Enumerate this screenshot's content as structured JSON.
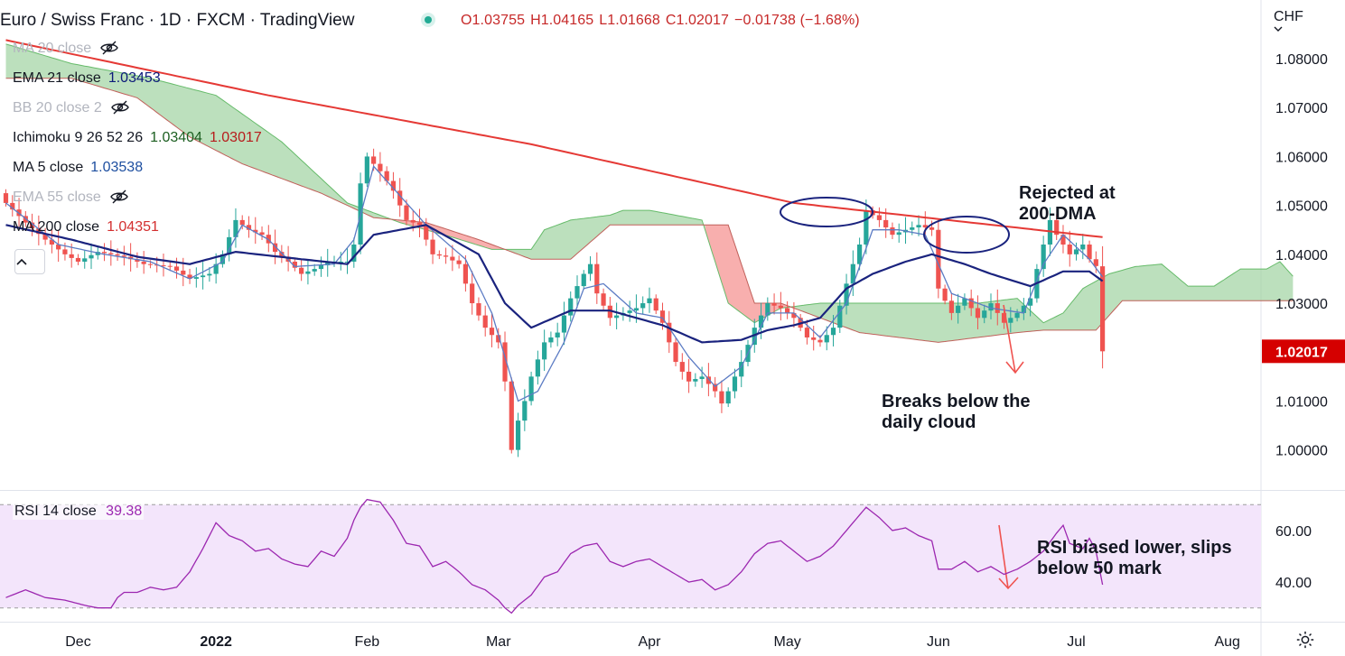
{
  "header": {
    "title": "Euro / Swiss Franc · 1D · FXCM · TradingView",
    "ohlc": {
      "o": "O1.03755",
      "h": "H1.04165",
      "l": "L1.01668",
      "c": "C1.02017",
      "chg": "−0.01738 (−1.68%)"
    }
  },
  "legend": [
    {
      "label": "MA 20 close",
      "value": "",
      "hidden": true,
      "color": "#b2b5be",
      "value_color": "#b2b5be"
    },
    {
      "label": "EMA 21 close",
      "value": "1.03453",
      "hidden": false,
      "color": "#131722",
      "value_color": "#0d1b7a"
    },
    {
      "label": "BB 20 close 2",
      "value": "",
      "hidden": true,
      "color": "#b2b5be",
      "value_color": "#b2b5be"
    },
    {
      "label": "Ichimoku 9 26 52 26",
      "value": "1.03404",
      "value2": "1.03017",
      "hidden": false,
      "color": "#131722",
      "value_color": "#1b5e20",
      "value2_color": "#b71c1c"
    },
    {
      "label": "MA 5 close",
      "value": "1.03538",
      "hidden": false,
      "color": "#131722",
      "value_color": "#1e4fa0"
    },
    {
      "label": "EMA 55 close",
      "value": "",
      "hidden": true,
      "color": "#b2b5be",
      "value_color": "#b2b5be"
    },
    {
      "label": "MA 200 close",
      "value": "1.04351",
      "hidden": false,
      "color": "#131722",
      "value_color": "#d32f2f"
    }
  ],
  "axis": {
    "currency": "CHF",
    "price_ticks": [
      "1.08000",
      "1.07000",
      "1.06000",
      "1.05000",
      "1.04000",
      "1.03000",
      "1.02000",
      "1.01000",
      "1.00000"
    ],
    "price_tick_values": [
      1.08,
      1.07,
      1.06,
      1.05,
      1.04,
      1.03,
      1.02,
      1.01,
      1.0
    ],
    "rsi_ticks": [
      "60.00",
      "40.00"
    ],
    "rsi_tick_values": [
      60,
      40
    ],
    "time_ticks": [
      "Dec",
      "2022",
      "Feb",
      "Mar",
      "Apr",
      "May",
      "Jun",
      "Jul",
      "Aug"
    ],
    "current_price_label": "1.02017"
  },
  "annotations": {
    "rejected": "Rejected at\n200-DMA",
    "breaks": "Breaks below the\ndaily cloud",
    "rsi": "RSI biased lower, slips\nbelow 50 mark"
  },
  "rsi": {
    "label": "RSI 14 close",
    "value": "39.38",
    "upper_band": 70,
    "lower_band": 30
  },
  "colors": {
    "up": "#26a69a",
    "down": "#ef5350",
    "ma200": "#e53935",
    "ema21": "#1a237e",
    "ma5": "#5c7cc4",
    "cloud_bear": "#f7a1a0",
    "cloud_bull": "#a5d6a7",
    "rsi": "#9c27b0",
    "rsi_band": "#f3e5fb",
    "price_label_bg": "#d50000"
  },
  "chart_data": {
    "type": "candlestick",
    "ylim": [
      0.992,
      1.092
    ],
    "rsi_ylim": [
      25,
      75
    ],
    "x_ticks": [
      {
        "label": "Dec",
        "index": 11
      },
      {
        "label": "2022",
        "index": 32
      },
      {
        "label": "Feb",
        "index": 55
      },
      {
        "label": "Mar",
        "index": 75
      },
      {
        "label": "Apr",
        "index": 98
      },
      {
        "label": "May",
        "index": 119
      },
      {
        "label": "Jun",
        "index": 142
      },
      {
        "label": "Jul",
        "index": 163
      },
      {
        "label": "Aug",
        "index": 186
      }
    ],
    "close_anchors": [
      [
        0,
        1.0505
      ],
      [
        3,
        1.0465
      ],
      [
        6,
        1.043
      ],
      [
        9,
        1.04
      ],
      [
        11,
        1.0385
      ],
      [
        14,
        1.0405
      ],
      [
        18,
        1.0395
      ],
      [
        21,
        1.038
      ],
      [
        25,
        1.0375
      ],
      [
        28,
        1.035
      ],
      [
        31,
        1.036
      ],
      [
        33,
        1.04
      ],
      [
        35,
        1.047
      ],
      [
        37,
        1.045
      ],
      [
        39,
        1.044
      ],
      [
        41,
        1.0405
      ],
      [
        43,
        1.0385
      ],
      [
        45,
        1.036
      ],
      [
        47,
        1.037
      ],
      [
        49,
        1.0385
      ],
      [
        52,
        1.0385
      ],
      [
        53,
        1.042
      ],
      [
        54,
        1.0545
      ],
      [
        55,
        1.06
      ],
      [
        57,
        1.057
      ],
      [
        59,
        1.053
      ],
      [
        61,
        1.047
      ],
      [
        63,
        1.046
      ],
      [
        65,
        1.04
      ],
      [
        67,
        1.0395
      ],
      [
        69,
        1.038
      ],
      [
        71,
        1.03
      ],
      [
        73,
        1.025
      ],
      [
        75,
        1.022
      ],
      [
        76,
        1.014
      ],
      [
        77,
        1.0
      ],
      [
        78,
        1.006
      ],
      [
        79,
        1.01
      ],
      [
        80,
        1.015
      ],
      [
        82,
        1.022
      ],
      [
        84,
        1.024
      ],
      [
        86,
        1.031
      ],
      [
        88,
        1.036
      ],
      [
        89,
        1.038
      ],
      [
        90,
        1.032
      ],
      [
        92,
        1.027
      ],
      [
        94,
        1.028
      ],
      [
        96,
        1.029
      ],
      [
        98,
        1.031
      ],
      [
        100,
        1.026
      ],
      [
        102,
        1.018
      ],
      [
        104,
        1.014
      ],
      [
        106,
        1.015
      ],
      [
        108,
        1.012
      ],
      [
        109,
        1.0095
      ],
      [
        110,
        1.012
      ],
      [
        112,
        1.018
      ],
      [
        114,
        1.025
      ],
      [
        116,
        1.03
      ],
      [
        118,
        1.029
      ],
      [
        120,
        1.027
      ],
      [
        122,
        1.023
      ],
      [
        124,
        1.022
      ],
      [
        126,
        1.025
      ],
      [
        128,
        1.034
      ],
      [
        130,
        1.042
      ],
      [
        131,
        1.049
      ],
      [
        133,
        1.047
      ],
      [
        135,
        1.044
      ],
      [
        137,
        1.045
      ],
      [
        139,
        1.046
      ],
      [
        141,
        1.045
      ],
      [
        142,
        1.033
      ],
      [
        144,
        1.028
      ],
      [
        146,
        1.031
      ],
      [
        148,
        1.027
      ],
      [
        150,
        1.03
      ],
      [
        152,
        1.026
      ],
      [
        154,
        1.028
      ],
      [
        156,
        1.031
      ],
      [
        157,
        1.037
      ],
      [
        158,
        1.042
      ],
      [
        159,
        1.047
      ],
      [
        160,
        1.044
      ],
      [
        162,
        1.04
      ],
      [
        164,
        1.042
      ],
      [
        165,
        1.039
      ],
      [
        166,
        1.0376
      ],
      [
        167,
        1.02017
      ]
    ],
    "last_ohlc": {
      "open": 1.03755,
      "high": 1.04165,
      "low": 1.01668,
      "close": 1.02017
    },
    "ma200": [
      [
        0,
        1.0838
      ],
      [
        40,
        1.0725
      ],
      [
        80,
        1.0625
      ],
      [
        120,
        1.0505
      ],
      [
        167,
        1.04351
      ]
    ],
    "ema21": [
      [
        0,
        1.046
      ],
      [
        10,
        1.043
      ],
      [
        20,
        1.0395
      ],
      [
        28,
        1.038
      ],
      [
        35,
        1.0405
      ],
      [
        45,
        1.039
      ],
      [
        52,
        1.038
      ],
      [
        56,
        1.044
      ],
      [
        64,
        1.046
      ],
      [
        72,
        1.04
      ],
      [
        76,
        1.03
      ],
      [
        80,
        1.025
      ],
      [
        86,
        1.0285
      ],
      [
        92,
        1.0285
      ],
      [
        100,
        1.0255
      ],
      [
        106,
        1.022
      ],
      [
        112,
        1.0225
      ],
      [
        116,
        1.0245
      ],
      [
        120,
        1.0255
      ],
      [
        124,
        1.027
      ],
      [
        128,
        1.033
      ],
      [
        132,
        1.036
      ],
      [
        137,
        1.0385
      ],
      [
        141,
        1.04
      ],
      [
        146,
        1.038
      ],
      [
        150,
        1.036
      ],
      [
        156,
        1.0335
      ],
      [
        161,
        1.0365
      ],
      [
        165,
        1.0365
      ],
      [
        167,
        1.03453
      ]
    ],
    "ma5": [
      [
        0,
        1.0505
      ],
      [
        8,
        1.042
      ],
      [
        15,
        1.04
      ],
      [
        22,
        1.0385
      ],
      [
        28,
        1.035
      ],
      [
        33,
        1.0385
      ],
      [
        36,
        1.046
      ],
      [
        40,
        1.043
      ],
      [
        44,
        1.0375
      ],
      [
        50,
        1.038
      ],
      [
        53,
        1.043
      ],
      [
        56,
        1.058
      ],
      [
        60,
        1.052
      ],
      [
        64,
        1.046
      ],
      [
        70,
        1.039
      ],
      [
        74,
        1.028
      ],
      [
        78,
        1.01
      ],
      [
        81,
        1.012
      ],
      [
        85,
        1.022
      ],
      [
        88,
        1.033
      ],
      [
        91,
        1.034
      ],
      [
        96,
        1.028
      ],
      [
        100,
        1.027
      ],
      [
        104,
        1.019
      ],
      [
        108,
        1.013
      ],
      [
        112,
        1.017
      ],
      [
        116,
        1.028
      ],
      [
        120,
        1.028
      ],
      [
        124,
        1.023
      ],
      [
        128,
        1.03
      ],
      [
        132,
        1.045
      ],
      [
        136,
        1.045
      ],
      [
        140,
        1.044
      ],
      [
        144,
        1.032
      ],
      [
        150,
        1.029
      ],
      [
        155,
        1.028
      ],
      [
        158,
        1.038
      ],
      [
        161,
        1.044
      ],
      [
        165,
        1.039
      ],
      [
        167,
        1.03538
      ]
    ],
    "ichimoku_span_a": [
      [
        0,
        1.083
      ],
      [
        10,
        1.079
      ],
      [
        22,
        1.076
      ],
      [
        32,
        1.0725
      ],
      [
        42,
        1.063
      ],
      [
        52,
        1.0505
      ],
      [
        60,
        1.0465
      ],
      [
        68,
        1.0435
      ],
      [
        74,
        1.041
      ],
      [
        80,
        1.041
      ],
      [
        82,
        1.045
      ],
      [
        86,
        1.047
      ],
      [
        92,
        1.048
      ],
      [
        94,
        1.049
      ],
      [
        98,
        1.049
      ],
      [
        102,
        1.048
      ],
      [
        106,
        1.047
      ],
      [
        110,
        1.03
      ],
      [
        114,
        1.026
      ],
      [
        118,
        1.029
      ],
      [
        124,
        1.03
      ],
      [
        130,
        1.03
      ],
      [
        136,
        1.03
      ],
      [
        142,
        1.03
      ],
      [
        148,
        1.03
      ],
      [
        154,
        1.031
      ],
      [
        158,
        1.026
      ],
      [
        161,
        1.028
      ],
      [
        164,
        1.033
      ],
      [
        168,
        1.036
      ],
      [
        172,
        1.0375
      ],
      [
        176,
        1.038
      ],
      [
        180,
        1.0335
      ],
      [
        184,
        1.0335
      ],
      [
        188,
        1.037
      ],
      [
        192,
        1.037
      ],
      [
        194,
        1.0385
      ],
      [
        196,
        1.0355
      ]
    ],
    "ichimoku_span_b": [
      [
        0,
        1.076
      ],
      [
        10,
        1.076
      ],
      [
        20,
        1.072
      ],
      [
        28,
        1.064
      ],
      [
        36,
        1.0585
      ],
      [
        48,
        1.0525
      ],
      [
        56,
        1.0475
      ],
      [
        64,
        1.0465
      ],
      [
        72,
        1.043
      ],
      [
        80,
        1.039
      ],
      [
        86,
        1.039
      ],
      [
        92,
        1.046
      ],
      [
        98,
        1.046
      ],
      [
        102,
        1.046
      ],
      [
        106,
        1.046
      ],
      [
        110,
        1.046
      ],
      [
        114,
        1.03
      ],
      [
        118,
        1.03
      ],
      [
        124,
        1.027
      ],
      [
        130,
        1.024
      ],
      [
        136,
        1.023
      ],
      [
        142,
        1.022
      ],
      [
        148,
        1.023
      ],
      [
        154,
        1.024
      ],
      [
        158,
        1.0245
      ],
      [
        162,
        1.0245
      ],
      [
        166,
        1.0245
      ],
      [
        170,
        1.0305
      ],
      [
        176,
        1.0305
      ],
      [
        182,
        1.0305
      ],
      [
        188,
        1.0305
      ],
      [
        196,
        1.0305
      ]
    ],
    "rsi_values": [
      [
        0,
        34
      ],
      [
        3,
        37
      ],
      [
        6,
        34
      ],
      [
        9,
        33
      ],
      [
        12,
        31
      ],
      [
        14,
        30
      ],
      [
        16,
        30
      ],
      [
        17,
        34
      ],
      [
        18,
        36
      ],
      [
        20,
        36
      ],
      [
        22,
        38
      ],
      [
        24,
        37
      ],
      [
        26,
        38
      ],
      [
        28,
        44
      ],
      [
        30,
        53
      ],
      [
        32,
        63
      ],
      [
        34,
        58
      ],
      [
        36,
        56
      ],
      [
        38,
        52
      ],
      [
        40,
        53
      ],
      [
        42,
        49
      ],
      [
        44,
        47
      ],
      [
        46,
        46
      ],
      [
        48,
        52
      ],
      [
        50,
        50
      ],
      [
        52,
        57
      ],
      [
        53,
        64
      ],
      [
        54,
        69
      ],
      [
        55,
        72
      ],
      [
        57,
        71
      ],
      [
        59,
        64
      ],
      [
        61,
        55
      ],
      [
        63,
        54
      ],
      [
        65,
        46
      ],
      [
        67,
        48
      ],
      [
        69,
        44
      ],
      [
        71,
        39
      ],
      [
        73,
        37
      ],
      [
        75,
        33
      ],
      [
        76,
        30
      ],
      [
        77,
        28
      ],
      [
        78,
        31
      ],
      [
        80,
        35
      ],
      [
        82,
        42
      ],
      [
        84,
        44
      ],
      [
        86,
        51
      ],
      [
        88,
        54
      ],
      [
        90,
        55
      ],
      [
        92,
        48
      ],
      [
        94,
        46
      ],
      [
        96,
        48
      ],
      [
        98,
        49
      ],
      [
        100,
        46
      ],
      [
        102,
        43
      ],
      [
        104,
        40
      ],
      [
        106,
        41
      ],
      [
        108,
        37
      ],
      [
        110,
        39
      ],
      [
        112,
        44
      ],
      [
        114,
        51
      ],
      [
        116,
        55
      ],
      [
        118,
        56
      ],
      [
        120,
        52
      ],
      [
        122,
        48
      ],
      [
        124,
        50
      ],
      [
        126,
        54
      ],
      [
        128,
        60
      ],
      [
        130,
        66
      ],
      [
        131,
        69
      ],
      [
        133,
        65
      ],
      [
        135,
        60
      ],
      [
        137,
        61
      ],
      [
        139,
        58
      ],
      [
        141,
        56
      ],
      [
        142,
        45
      ],
      [
        144,
        45
      ],
      [
        146,
        48
      ],
      [
        148,
        44
      ],
      [
        150,
        46
      ],
      [
        152,
        43
      ],
      [
        154,
        45
      ],
      [
        156,
        48
      ],
      [
        158,
        52
      ],
      [
        160,
        59
      ],
      [
        161,
        62
      ],
      [
        162,
        55
      ],
      [
        164,
        53
      ],
      [
        165,
        57
      ],
      [
        166,
        52
      ],
      [
        167,
        39
      ]
    ]
  }
}
